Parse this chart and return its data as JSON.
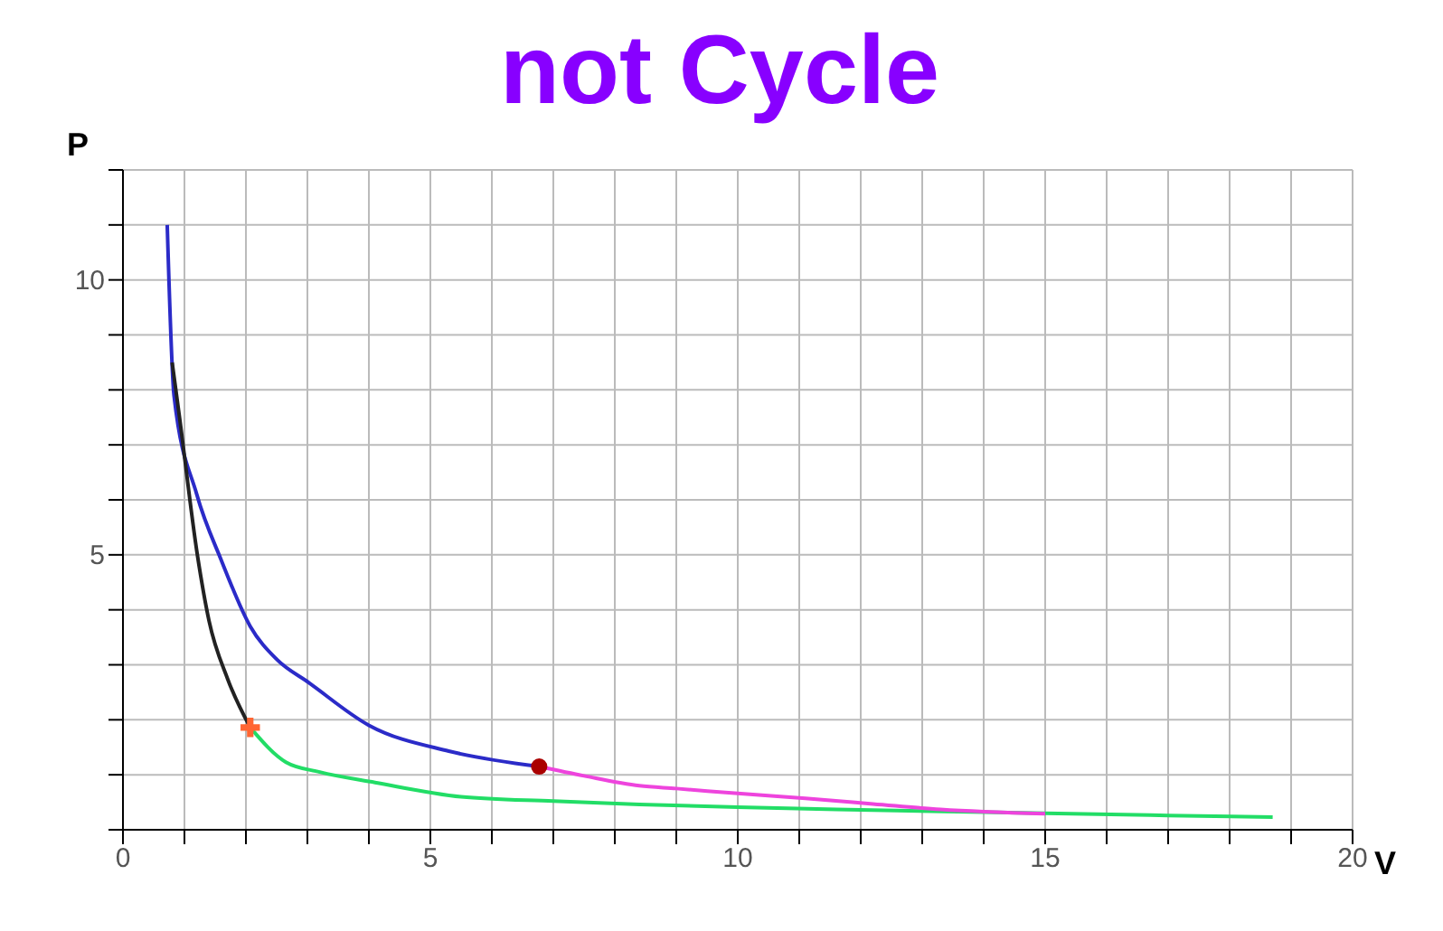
{
  "chart_data": {
    "type": "line",
    "title": "not Cycle",
    "xlabel": "V",
    "ylabel": "P",
    "xlim": [
      0,
      20
    ],
    "ylim": [
      0,
      12
    ],
    "xticks": [
      0,
      {
        "value": 1,
        "label": null
      },
      {
        "value": 2,
        "label": null
      },
      {
        "value": 3,
        "label": null
      },
      {
        "value": 4,
        "label": null
      },
      5,
      {
        "value": 6,
        "label": null
      },
      {
        "value": 7,
        "label": null
      },
      {
        "value": 8,
        "label": null
      },
      {
        "value": 9,
        "label": null
      },
      10,
      {
        "value": 11,
        "label": null
      },
      {
        "value": 12,
        "label": null
      },
      {
        "value": 13,
        "label": null
      },
      {
        "value": 14,
        "label": null
      },
      15,
      {
        "value": 16,
        "label": null
      },
      {
        "value": 17,
        "label": null
      },
      {
        "value": 18,
        "label": null
      },
      {
        "value": 19,
        "label": null
      },
      20
    ],
    "yticks": [
      {
        "value": 0,
        "label": null
      },
      {
        "value": 1,
        "label": null
      },
      {
        "value": 2,
        "label": null
      },
      {
        "value": 3,
        "label": null
      },
      {
        "value": 4,
        "label": null
      },
      5,
      {
        "value": 6,
        "label": null
      },
      {
        "value": 7,
        "label": null
      },
      {
        "value": 8,
        "label": null
      },
      {
        "value": 9,
        "label": null
      },
      10,
      {
        "value": 11,
        "label": null
      },
      {
        "value": 12,
        "label": null
      }
    ],
    "grid": true,
    "marker": "none",
    "series": [
      {
        "color": "#2b2bc8",
        "x": [
          0.72,
          0.83,
          1.2,
          1.6,
          2.07,
          2.5,
          3.03,
          4.0,
          5.3,
          6.77
        ],
        "values": [
          11,
          7.9,
          6.1,
          4.9,
          3.7,
          3.1,
          2.67,
          1.9,
          1.43,
          1.15
        ]
      },
      {
        "color": "#222222",
        "x": [
          0.8,
          0.92,
          1.21,
          1.4,
          1.7,
          2.07
        ],
        "values": [
          8.5,
          7.5,
          5.0,
          3.8,
          2.75,
          1.86
        ]
      },
      {
        "color": "#22dd66",
        "x": [
          2.07,
          2.65,
          3.2,
          4.1,
          5.5,
          7,
          8.4,
          10,
          12,
          15,
          17,
          18.7
        ],
        "values": [
          1.86,
          1.23,
          1.05,
          0.86,
          0.6,
          0.52,
          0.46,
          0.41,
          0.36,
          0.3,
          0.26,
          0.23
        ]
      },
      {
        "color": "#ee44dd",
        "x": [
          6.77,
          7.5,
          8.4,
          9.0,
          10,
          11.1,
          12.2,
          13.3,
          15.0
        ],
        "values": [
          1.15,
          0.98,
          0.8,
          0.75,
          0.66,
          0.57,
          0.47,
          0.37,
          0.29
        ]
      },
      {
        "type": "scatter",
        "marker": "cross",
        "color": "#ff6633",
        "x": [
          2.07
        ],
        "values": [
          1.86
        ]
      },
      {
        "type": "scatter",
        "marker": "circle",
        "color": "#aa0000",
        "x": [
          6.77
        ],
        "values": [
          1.15
        ]
      }
    ]
  }
}
